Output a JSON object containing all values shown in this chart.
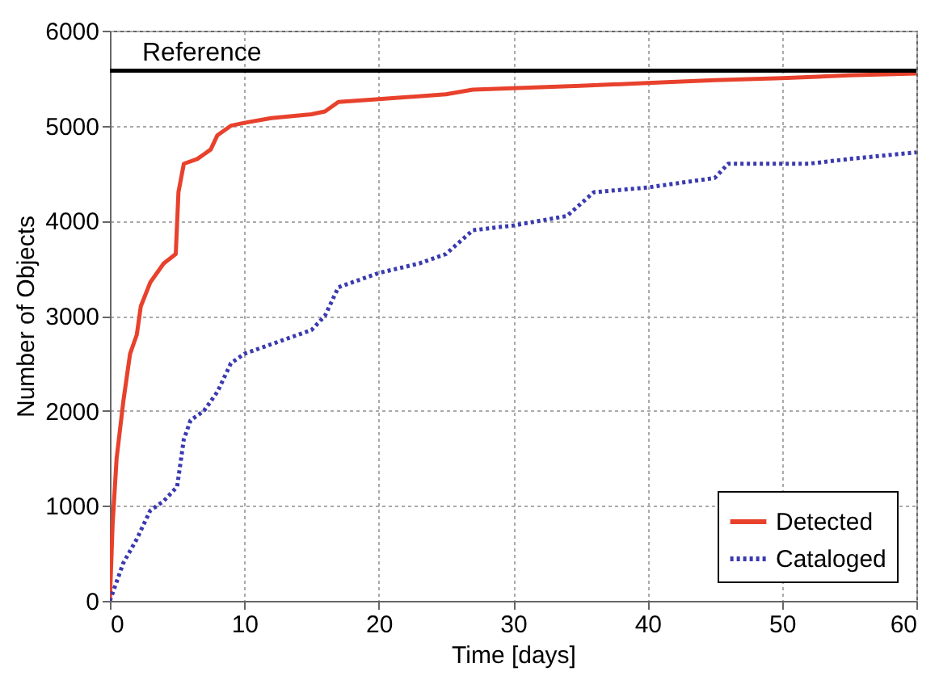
{
  "chart_data": {
    "type": "line",
    "xlabel": "Time [days]",
    "ylabel": "Number of Objects",
    "xlim": [
      0,
      60
    ],
    "xticks": [
      0,
      10,
      20,
      30,
      40,
      50,
      60
    ],
    "ylim": [
      0,
      6000
    ],
    "yticks": [
      0,
      1000,
      2000,
      3000,
      4000,
      5000,
      6000
    ],
    "grid": true,
    "legend": "bottom right",
    "ref_lines": [
      {
        "axis": "y",
        "value": 5580,
        "label": "Reference",
        "color": "#000000"
      }
    ],
    "series": [
      {
        "name": "Detected",
        "color": "#e8412c",
        "line_style": "solid",
        "x": [
          0,
          0.2,
          0.5,
          1,
          1.5,
          2,
          2.3,
          3,
          4,
          4.9,
          5.1,
          5.5,
          6.5,
          7.5,
          8,
          9,
          10,
          12,
          15,
          16,
          17,
          20,
          25,
          27,
          35,
          40,
          45,
          50,
          55,
          60
        ],
        "values": [
          0,
          800,
          1500,
          2100,
          2600,
          2800,
          3100,
          3350,
          3550,
          3650,
          4300,
          4600,
          4650,
          4750,
          4900,
          5000,
          5030,
          5080,
          5120,
          5150,
          5250,
          5280,
          5330,
          5380,
          5420,
          5450,
          5480,
          5500,
          5530,
          5550
        ]
      },
      {
        "name": "Cataloged",
        "color": "#3a3ab0",
        "line_style": "dotted",
        "x": [
          0,
          1,
          2,
          3,
          4,
          5,
          5.5,
          6,
          7,
          8,
          9,
          10,
          13,
          15,
          16,
          17,
          20,
          23,
          25,
          27,
          30,
          34,
          36,
          40,
          45,
          46,
          52,
          55,
          60
        ],
        "values": [
          0,
          400,
          650,
          950,
          1050,
          1200,
          1700,
          1900,
          2000,
          2200,
          2500,
          2600,
          2750,
          2850,
          3000,
          3300,
          3450,
          3550,
          3650,
          3900,
          3950,
          4050,
          4300,
          4350,
          4450,
          4600,
          4600,
          4650,
          4720
        ]
      }
    ]
  }
}
